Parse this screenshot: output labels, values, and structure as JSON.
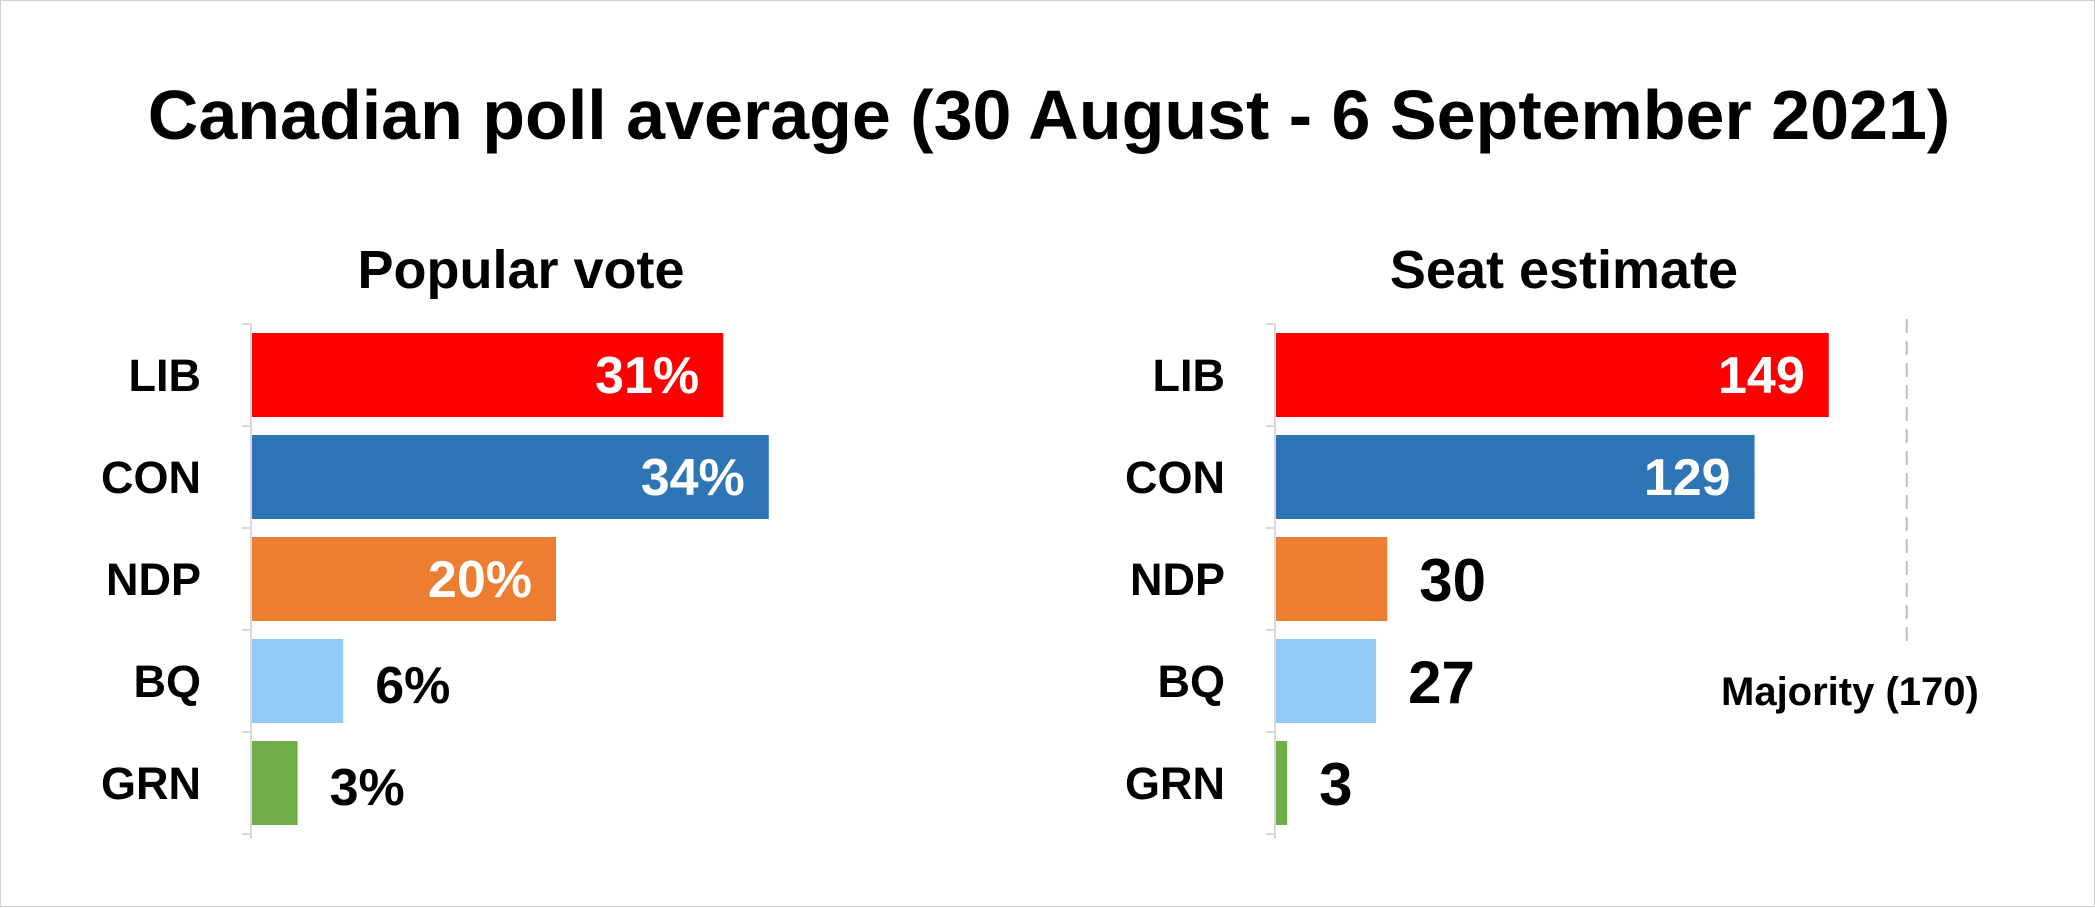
{
  "title": "Canadian poll average (30 August - 6 September 2021)",
  "colors": {
    "LIB": "#ff0000",
    "CON": "#2e75b6",
    "NDP": "#ed7d31",
    "BQ": "#92c9f5",
    "GRN": "#70ad47"
  },
  "chart_data": [
    {
      "type": "bar",
      "orientation": "horizontal",
      "title": "Popular vote",
      "categories": [
        "LIB",
        "CON",
        "NDP",
        "BQ",
        "GRN"
      ],
      "values": [
        31,
        34,
        20,
        6,
        3
      ],
      "value_labels": [
        "31%",
        "34%",
        "20%",
        "6%",
        "3%"
      ],
      "xlim": [
        0,
        40
      ],
      "grid": false,
      "legend": "none"
    },
    {
      "type": "bar",
      "orientation": "horizontal",
      "title": "Seat estimate",
      "categories": [
        "LIB",
        "CON",
        "NDP",
        "BQ",
        "GRN"
      ],
      "values": [
        149,
        129,
        30,
        27,
        3
      ],
      "value_labels": [
        "149",
        "129",
        "30",
        "27",
        "3"
      ],
      "xlim": [
        0,
        220
      ],
      "grid": false,
      "legend": "none",
      "reference_line": {
        "value": 170,
        "label": "Majority (170)",
        "style": "dashed"
      }
    }
  ]
}
